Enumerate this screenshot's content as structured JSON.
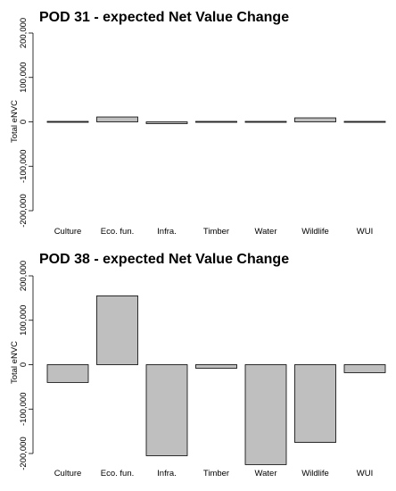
{
  "chart_data": [
    {
      "type": "bar",
      "title": "POD 31 - expected Net Value Change",
      "ylabel": "Total eNVC",
      "categories": [
        "Culture",
        "Eco. fun.",
        "Infra.",
        "Timber",
        "Water",
        "Wildlife",
        "WUI"
      ],
      "values": [
        300,
        11000,
        -4000,
        500,
        -1500,
        9000,
        200
      ],
      "ylim": [
        -200000,
        200000
      ],
      "yticks": [
        200000,
        100000,
        0,
        -100000,
        -200000
      ],
      "ytick_labels": [
        "200,000",
        "100,000",
        "0",
        "-100,000",
        "-200,000"
      ],
      "bar_color": "#bfbfbf",
      "grid": false
    },
    {
      "type": "bar",
      "title": "POD 38 - expected Net Value Change",
      "ylabel": "Total eNVC",
      "categories": [
        "Culture",
        "Eco. fun.",
        "Infra.",
        "Timber",
        "Water",
        "Wildlife",
        "WUI"
      ],
      "values": [
        -40000,
        155000,
        -205000,
        -8000,
        -225000,
        -175000,
        -18000
      ],
      "ylim": [
        -200000,
        200000
      ],
      "yticks": [
        200000,
        100000,
        0,
        -100000,
        -200000
      ],
      "ytick_labels": [
        "200,000",
        "100,000",
        "0",
        "-100,000",
        "-200,000"
      ],
      "bar_color": "#bfbfbf",
      "grid": false
    }
  ]
}
